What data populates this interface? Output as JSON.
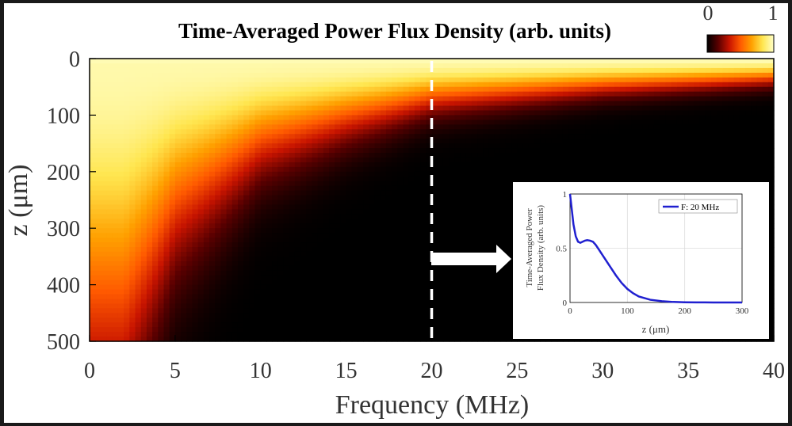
{
  "chart_data": [
    {
      "type": "heatmap",
      "title": "Time-Averaged Power Flux Density (arb. units)",
      "xlabel": "Frequency (MHz)",
      "ylabel": "z (μm)",
      "xlim": [
        0,
        40
      ],
      "ylim": [
        0,
        500
      ],
      "y_axis_direction": "downward (0 at top)",
      "x_ticks": [
        "0",
        "5",
        "10",
        "15",
        "20",
        "25",
        "30",
        "35",
        "40"
      ],
      "y_ticks": [
        "0",
        "100",
        "200",
        "300",
        "400",
        "500"
      ],
      "colorbar": {
        "min_label": "0",
        "max_label": "1",
        "colors": [
          "#000000",
          "#5a0000",
          "#c81400",
          "#ff5a00",
          "#ffa000",
          "#ffe650",
          "#ffffc8"
        ]
      },
      "description_of_values": "Normalized flux decays with depth z; decay length shrinks with frequency",
      "penetration_depth_um": [
        {
          "f": 0.5,
          "z": 500
        },
        {
          "f": 2,
          "z": 500
        },
        {
          "f": 5,
          "z": 300
        },
        {
          "f": 10,
          "z": 170
        },
        {
          "f": 15,
          "z": 120
        },
        {
          "f": 20,
          "z": 80
        },
        {
          "f": 30,
          "z": 55
        },
        {
          "f": 40,
          "z": 40
        }
      ],
      "annotation": {
        "marker_frequency": 20,
        "style": "white dashed vertical line with arrow pointing to inset"
      }
    },
    {
      "type": "line",
      "ylabel_line1": "Time-Averaged Power",
      "ylabel_line2": "Flux Density (arb. units)",
      "xlabel": "z (μm)",
      "xlim": [
        0,
        300
      ],
      "ylim": [
        0,
        1
      ],
      "x_ticks": [
        "0",
        "100",
        "200",
        "300"
      ],
      "y_ticks": [
        "0",
        "0.5",
        "1"
      ],
      "grid": true,
      "legend_position": "top-right",
      "series": [
        {
          "name": "F: 20 MHz",
          "color": "#2020d0",
          "x": [
            0,
            3,
            6,
            10,
            14,
            18,
            22,
            26,
            30,
            35,
            40,
            45,
            50,
            55,
            60,
            70,
            80,
            90,
            100,
            110,
            120,
            140,
            160,
            180,
            200,
            220,
            250,
            280,
            300
          ],
          "y": [
            1.0,
            0.86,
            0.72,
            0.61,
            0.56,
            0.55,
            0.56,
            0.57,
            0.575,
            0.57,
            0.56,
            0.53,
            0.49,
            0.45,
            0.41,
            0.33,
            0.25,
            0.18,
            0.125,
            0.085,
            0.055,
            0.025,
            0.012,
            0.005,
            0.002,
            0.001,
            0.0,
            0.0,
            0.0
          ]
        }
      ]
    }
  ]
}
